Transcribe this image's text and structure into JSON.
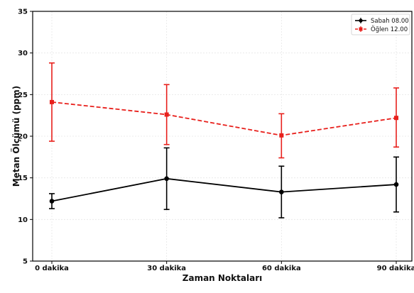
{
  "chart_data": {
    "type": "line",
    "title": "",
    "xlabel": "Zaman Noktaları",
    "ylabel": "Metan Ölçümü (ppm)",
    "categories": [
      "0 dakika",
      "30 dakika",
      "60 dakika",
      "90 dakika"
    ],
    "ylim": [
      5,
      35
    ],
    "yticks": [
      5,
      10,
      15,
      20,
      25,
      30,
      35
    ],
    "grid": true,
    "legend": "top-right",
    "series": [
      {
        "name": "Sabah 08.00",
        "color": "#000000",
        "linestyle": "solid",
        "marker": "circle",
        "values": [
          12.2,
          14.9,
          13.3,
          14.2
        ],
        "err_low": [
          11.3,
          11.2,
          10.2,
          10.9
        ],
        "err_high": [
          13.1,
          18.6,
          16.4,
          17.5
        ]
      },
      {
        "name": "Öğlen 12.00",
        "color": "#e8201c",
        "linestyle": "dashed",
        "marker": "square",
        "values": [
          24.1,
          22.6,
          20.1,
          22.2
        ],
        "err_low": [
          19.4,
          19.0,
          17.4,
          18.7
        ],
        "err_high": [
          28.8,
          26.2,
          22.7,
          25.8
        ]
      }
    ]
  }
}
